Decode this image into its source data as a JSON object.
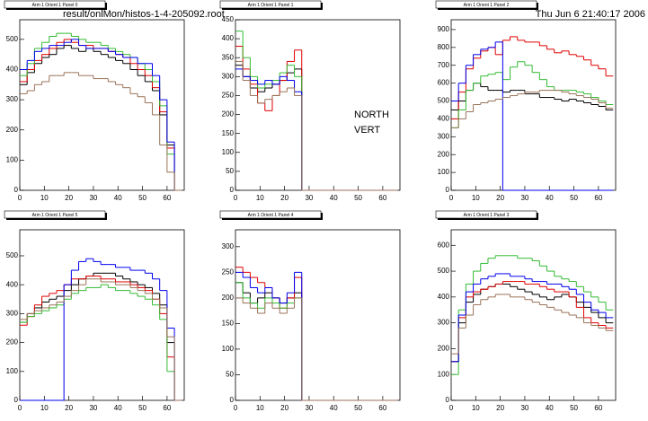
{
  "header": {
    "file": "result/onlMon/histos-1-4-205092.root",
    "date": "Thu Jun  6 21:40:17 2006"
  },
  "labels": [
    "NORTH",
    "VERT"
  ],
  "chart_data": [
    {
      "type": "histogram",
      "title": "Arm 1 Orient 1 Panel 0",
      "bins": [
        0,
        3,
        6,
        9,
        12,
        15,
        18,
        21,
        24,
        27,
        30,
        33,
        36,
        39,
        42,
        45,
        48,
        51,
        54,
        57,
        60,
        63,
        66
      ],
      "xlim": [
        0,
        67
      ],
      "xticks": [
        0,
        10,
        20,
        30,
        40,
        50,
        60
      ],
      "ylim": [
        0,
        565
      ],
      "yticks": [
        0,
        100,
        200,
        300,
        400,
        500
      ],
      "series": [
        {
          "color": "#000000",
          "values": [
            350,
            390,
            420,
            440,
            450,
            470,
            480,
            470,
            460,
            470,
            460,
            450,
            440,
            430,
            420,
            400,
            380,
            360,
            330,
            250,
            150,
            0
          ]
        },
        {
          "color": "#e00000",
          "values": [
            360,
            400,
            430,
            450,
            470,
            490,
            500,
            490,
            480,
            480,
            470,
            470,
            460,
            450,
            440,
            420,
            400,
            380,
            340,
            260,
            140,
            0
          ]
        },
        {
          "color": "#33bb33",
          "values": [
            380,
            420,
            470,
            490,
            510,
            520,
            520,
            510,
            500,
            490,
            490,
            480,
            470,
            460,
            450,
            440,
            420,
            400,
            360,
            280,
            120,
            0
          ]
        },
        {
          "color": "#0000ee",
          "values": [
            400,
            430,
            460,
            470,
            480,
            480,
            490,
            500,
            480,
            470,
            470,
            470,
            460,
            450,
            440,
            440,
            420,
            420,
            380,
            300,
            160,
            0
          ]
        },
        {
          "color": "#9a7258",
          "values": [
            320,
            330,
            350,
            360,
            380,
            380,
            390,
            390,
            380,
            380,
            370,
            370,
            360,
            350,
            340,
            320,
            310,
            290,
            250,
            150,
            60,
            0
          ]
        }
      ]
    },
    {
      "type": "histogram",
      "title": "Arm 1 Orient 1 Panel 1",
      "bins": [
        0,
        3,
        6,
        9,
        12,
        15,
        18,
        21,
        24,
        27,
        30,
        33,
        36,
        39,
        42,
        45,
        48,
        51,
        54,
        57,
        60,
        63,
        66
      ],
      "xlim": [
        0,
        67
      ],
      "xticks": [
        0,
        10,
        20,
        30,
        40,
        50,
        60
      ],
      "ylim": [
        0,
        450
      ],
      "yticks": [
        0,
        50,
        100,
        150,
        200,
        250,
        300,
        350,
        400,
        450
      ],
      "series": [
        {
          "color": "#000000",
          "values": [
            330,
            300,
            270,
            260,
            270,
            280,
            290,
            310,
            320,
            0,
            0,
            0,
            0,
            0,
            0,
            0,
            0,
            0,
            0,
            0,
            0,
            0
          ]
        },
        {
          "color": "#e00000",
          "values": [
            380,
            320,
            280,
            230,
            210,
            250,
            290,
            340,
            370,
            0,
            0,
            0,
            0,
            0,
            0,
            0,
            0,
            0,
            0,
            0,
            0,
            0
          ]
        },
        {
          "color": "#33bb33",
          "values": [
            420,
            350,
            300,
            270,
            280,
            290,
            310,
            330,
            300,
            0,
            0,
            0,
            0,
            0,
            0,
            0,
            0,
            0,
            0,
            0,
            0,
            0
          ]
        },
        {
          "color": "#0000ee",
          "values": [
            320,
            300,
            290,
            280,
            290,
            280,
            300,
            290,
            260,
            0,
            0,
            0,
            0,
            0,
            0,
            0,
            0,
            0,
            0,
            0,
            0,
            0
          ]
        },
        {
          "color": "#9a7258",
          "values": [
            340,
            290,
            250,
            230,
            240,
            250,
            260,
            270,
            250,
            0,
            0,
            0,
            0,
            0,
            0,
            0,
            0,
            0,
            0,
            0,
            0,
            0
          ]
        }
      ]
    },
    {
      "type": "histogram",
      "title": "Arm 1 Orient 1 Panel 2",
      "bins": [
        0,
        3,
        6,
        9,
        12,
        15,
        18,
        21,
        24,
        27,
        30,
        33,
        36,
        39,
        42,
        45,
        48,
        51,
        54,
        57,
        60,
        63,
        66
      ],
      "xlim": [
        0,
        67
      ],
      "xticks": [
        0,
        10,
        20,
        30,
        40,
        50,
        60
      ],
      "ylim": [
        0,
        955
      ],
      "yticks": [
        0,
        100,
        200,
        300,
        400,
        500,
        600,
        700,
        800,
        900
      ],
      "series": [
        {
          "color": "#000000",
          "values": [
            450,
            500,
            560,
            600,
            580,
            560,
            560,
            550,
            560,
            560,
            540,
            540,
            520,
            520,
            510,
            500,
            510,
            500,
            490,
            480,
            470,
            450
          ]
        },
        {
          "color": "#e00000",
          "values": [
            400,
            550,
            680,
            740,
            780,
            800,
            760,
            840,
            860,
            840,
            830,
            830,
            810,
            790,
            770,
            780,
            760,
            750,
            730,
            700,
            680,
            640
          ]
        },
        {
          "color": "#33bb33",
          "values": [
            350,
            450,
            560,
            600,
            640,
            650,
            660,
            620,
            690,
            720,
            700,
            660,
            620,
            580,
            560,
            560,
            560,
            550,
            540,
            520,
            500,
            480
          ]
        },
        {
          "color": "#0000ee",
          "values": [
            500,
            600,
            700,
            760,
            790,
            800,
            830,
            0,
            0,
            0,
            0,
            0,
            0,
            0,
            0,
            0,
            0,
            0,
            0,
            0,
            0,
            0
          ]
        },
        {
          "color": "#9a7258",
          "values": [
            350,
            400,
            440,
            480,
            490,
            500,
            510,
            520,
            530,
            540,
            550,
            550,
            560,
            560,
            560,
            550,
            540,
            530,
            520,
            510,
            490,
            460
          ]
        }
      ]
    },
    {
      "type": "histogram",
      "title": "Arm 1 Orient 1 Panel 5",
      "bins": [
        0,
        3,
        6,
        9,
        12,
        15,
        18,
        21,
        24,
        27,
        30,
        33,
        36,
        39,
        42,
        45,
        48,
        51,
        54,
        57,
        60,
        63,
        66
      ],
      "xlim": [
        0,
        67
      ],
      "xticks": [
        0,
        10,
        20,
        30,
        40,
        50,
        60
      ],
      "ylim": [
        0,
        590
      ],
      "yticks": [
        0,
        100,
        200,
        300,
        400,
        500
      ],
      "series": [
        {
          "color": "#000000",
          "values": [
            270,
            300,
            320,
            340,
            350,
            360,
            380,
            400,
            420,
            430,
            440,
            440,
            440,
            430,
            420,
            410,
            400,
            390,
            370,
            330,
            200,
            0
          ]
        },
        {
          "color": "#e00000",
          "values": [
            260,
            290,
            330,
            360,
            370,
            380,
            400,
            420,
            420,
            430,
            430,
            420,
            420,
            410,
            410,
            400,
            390,
            380,
            350,
            300,
            150,
            0
          ]
        },
        {
          "color": "#33bb33",
          "values": [
            270,
            290,
            300,
            310,
            320,
            330,
            350,
            370,
            380,
            390,
            390,
            400,
            390,
            380,
            380,
            370,
            360,
            350,
            330,
            280,
            100,
            0
          ]
        },
        {
          "color": "#0000ee",
          "values": [
            0,
            0,
            0,
            0,
            0,
            0,
            400,
            450,
            480,
            490,
            480,
            470,
            470,
            460,
            460,
            450,
            450,
            440,
            420,
            380,
            250,
            0
          ]
        },
        {
          "color": "#9a7258",
          "values": [
            280,
            300,
            310,
            320,
            330,
            340,
            360,
            380,
            400,
            420,
            420,
            410,
            410,
            400,
            400,
            390,
            380,
            370,
            350,
            320,
            220,
            0
          ]
        }
      ]
    },
    {
      "type": "histogram",
      "title": "Arm 1 Orient 1 Panel 4",
      "bins": [
        0,
        3,
        6,
        9,
        12,
        15,
        18,
        21,
        24,
        27,
        30,
        33,
        36,
        39,
        42,
        45,
        48,
        51,
        54,
        57,
        60,
        63,
        66
      ],
      "xlim": [
        0,
        67
      ],
      "xticks": [
        0,
        10,
        20,
        30,
        40,
        50,
        60
      ],
      "ylim": [
        0,
        333
      ],
      "yticks": [
        0,
        50,
        100,
        150,
        200,
        250,
        300
      ],
      "series": [
        {
          "color": "#000000",
          "values": [
            230,
            210,
            190,
            200,
            210,
            200,
            190,
            200,
            210,
            0,
            0,
            0,
            0,
            0,
            0,
            0,
            0,
            0,
            0,
            0,
            0,
            0
          ]
        },
        {
          "color": "#e00000",
          "values": [
            260,
            250,
            240,
            230,
            220,
            200,
            180,
            200,
            240,
            0,
            0,
            0,
            0,
            0,
            0,
            0,
            0,
            0,
            0,
            0,
            0,
            0
          ]
        },
        {
          "color": "#33bb33",
          "values": [
            230,
            200,
            190,
            180,
            200,
            190,
            180,
            190,
            200,
            0,
            0,
            0,
            0,
            0,
            0,
            0,
            0,
            0,
            0,
            0,
            0,
            0
          ]
        },
        {
          "color": "#0000ee",
          "values": [
            250,
            240,
            220,
            210,
            220,
            200,
            190,
            210,
            250,
            0,
            0,
            0,
            0,
            0,
            0,
            0,
            0,
            0,
            0,
            0,
            0,
            0
          ]
        },
        {
          "color": "#9a7258",
          "values": [
            200,
            190,
            180,
            170,
            190,
            180,
            170,
            180,
            200,
            0,
            0,
            0,
            0,
            0,
            0,
            0,
            0,
            0,
            0,
            0,
            0,
            0
          ]
        }
      ]
    },
    {
      "type": "histogram",
      "title": "Arm 1 Orient 1 Panel 3",
      "bins": [
        0,
        3,
        6,
        9,
        12,
        15,
        18,
        21,
        24,
        27,
        30,
        33,
        36,
        39,
        42,
        45,
        48,
        51,
        54,
        57,
        60,
        63,
        66
      ],
      "xlim": [
        0,
        67
      ],
      "xticks": [
        0,
        10,
        20,
        30,
        40,
        50,
        60
      ],
      "ylim": [
        0,
        660
      ],
      "yticks": [
        0,
        100,
        200,
        300,
        400,
        500,
        600
      ],
      "series": [
        {
          "color": "#000000",
          "values": [
            150,
            300,
            380,
            410,
            430,
            440,
            450,
            450,
            440,
            430,
            420,
            410,
            400,
            390,
            400,
            410,
            400,
            380,
            360,
            340,
            320,
            300
          ]
        },
        {
          "color": "#e00000",
          "values": [
            150,
            320,
            400,
            420,
            430,
            440,
            450,
            460,
            460,
            460,
            450,
            450,
            440,
            430,
            420,
            420,
            400,
            360,
            320,
            300,
            290,
            280
          ]
        },
        {
          "color": "#33bb33",
          "values": [
            100,
            350,
            450,
            500,
            530,
            550,
            560,
            560,
            560,
            550,
            550,
            540,
            520,
            500,
            480,
            470,
            460,
            440,
            420,
            400,
            380,
            350
          ]
        },
        {
          "color": "#0000ee",
          "values": [
            150,
            330,
            420,
            450,
            470,
            480,
            490,
            490,
            480,
            480,
            470,
            460,
            460,
            450,
            450,
            440,
            430,
            410,
            380,
            350,
            340,
            320
          ]
        },
        {
          "color": "#9a7258",
          "values": [
            180,
            280,
            330,
            370,
            390,
            400,
            410,
            410,
            400,
            400,
            390,
            380,
            370,
            360,
            350,
            340,
            330,
            320,
            300,
            290,
            280,
            270
          ]
        }
      ]
    }
  ]
}
